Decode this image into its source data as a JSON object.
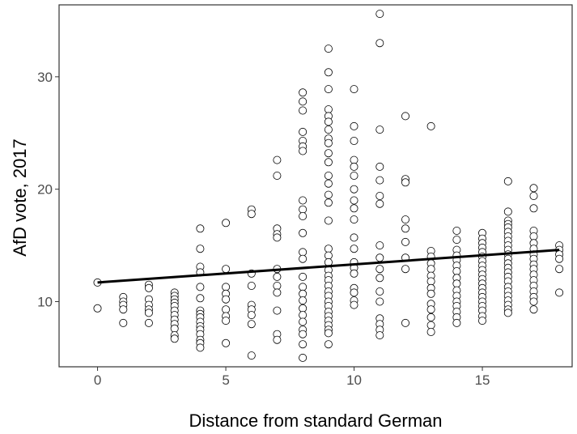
{
  "chart_data": {
    "type": "scatter",
    "title": "",
    "xlabel": "Distance from standard German",
    "ylabel": "AfD vote, 2017",
    "xlim": [
      -1.5,
      18.5
    ],
    "ylim": [
      4.2,
      36.4
    ],
    "x_ticks": [
      0,
      5,
      10,
      15
    ],
    "y_ticks": [
      10,
      20,
      30
    ],
    "x_tick_labels": [
      "0",
      "5",
      "10",
      "15"
    ],
    "y_tick_labels": [
      "10",
      "20",
      "30"
    ],
    "grid": false,
    "legend": "none",
    "trend_line": {
      "x": [
        0,
        18
      ],
      "y": [
        11.7,
        14.6
      ]
    },
    "points": [
      {
        "x": 0,
        "y": 11.7
      },
      {
        "x": 0,
        "y": 9.4
      },
      {
        "x": 1,
        "y": 10.4
      },
      {
        "x": 1,
        "y": 10.0
      },
      {
        "x": 1,
        "y": 9.7
      },
      {
        "x": 1,
        "y": 9.3
      },
      {
        "x": 1,
        "y": 8.1
      },
      {
        "x": 2,
        "y": 11.5
      },
      {
        "x": 2,
        "y": 11.2
      },
      {
        "x": 2,
        "y": 10.2
      },
      {
        "x": 2,
        "y": 9.7
      },
      {
        "x": 2,
        "y": 9.3
      },
      {
        "x": 2,
        "y": 9.0
      },
      {
        "x": 2,
        "y": 8.1
      },
      {
        "x": 3,
        "y": 10.8
      },
      {
        "x": 3,
        "y": 10.5
      },
      {
        "x": 3,
        "y": 10.2
      },
      {
        "x": 3,
        "y": 9.9
      },
      {
        "x": 3,
        "y": 9.6
      },
      {
        "x": 3,
        "y": 9.2
      },
      {
        "x": 3,
        "y": 8.8
      },
      {
        "x": 3,
        "y": 8.4
      },
      {
        "x": 3,
        "y": 8.0
      },
      {
        "x": 3,
        "y": 7.6
      },
      {
        "x": 3,
        "y": 7.0
      },
      {
        "x": 3,
        "y": 6.7
      },
      {
        "x": 4,
        "y": 16.5
      },
      {
        "x": 4,
        "y": 14.7
      },
      {
        "x": 4,
        "y": 13.1
      },
      {
        "x": 4,
        "y": 12.6
      },
      {
        "x": 4,
        "y": 11.3
      },
      {
        "x": 4,
        "y": 10.3
      },
      {
        "x": 4,
        "y": 9.2
      },
      {
        "x": 4,
        "y": 8.9
      },
      {
        "x": 4,
        "y": 8.6
      },
      {
        "x": 4,
        "y": 8.2
      },
      {
        "x": 4,
        "y": 7.8
      },
      {
        "x": 4,
        "y": 7.5
      },
      {
        "x": 4,
        "y": 7.1
      },
      {
        "x": 4,
        "y": 6.6
      },
      {
        "x": 4,
        "y": 6.3
      },
      {
        "x": 4,
        "y": 5.9
      },
      {
        "x": 5,
        "y": 17.0
      },
      {
        "x": 5,
        "y": 12.9
      },
      {
        "x": 5,
        "y": 11.3
      },
      {
        "x": 5,
        "y": 10.7
      },
      {
        "x": 5,
        "y": 10.2
      },
      {
        "x": 5,
        "y": 9.3
      },
      {
        "x": 5,
        "y": 8.7
      },
      {
        "x": 5,
        "y": 8.3
      },
      {
        "x": 5,
        "y": 6.3
      },
      {
        "x": 6,
        "y": 18.2
      },
      {
        "x": 6,
        "y": 17.8
      },
      {
        "x": 6,
        "y": 12.5
      },
      {
        "x": 6,
        "y": 11.4
      },
      {
        "x": 6,
        "y": 9.7
      },
      {
        "x": 6,
        "y": 9.3
      },
      {
        "x": 6,
        "y": 8.8
      },
      {
        "x": 6,
        "y": 8.0
      },
      {
        "x": 6,
        "y": 5.2
      },
      {
        "x": 7,
        "y": 22.6
      },
      {
        "x": 7,
        "y": 21.2
      },
      {
        "x": 7,
        "y": 16.5
      },
      {
        "x": 7,
        "y": 16.0
      },
      {
        "x": 7,
        "y": 15.7
      },
      {
        "x": 7,
        "y": 12.9
      },
      {
        "x": 7,
        "y": 12.2
      },
      {
        "x": 7,
        "y": 11.4
      },
      {
        "x": 7,
        "y": 10.8
      },
      {
        "x": 7,
        "y": 9.2
      },
      {
        "x": 7,
        "y": 7.1
      },
      {
        "x": 7,
        "y": 6.6
      },
      {
        "x": 8,
        "y": 28.6
      },
      {
        "x": 8,
        "y": 27.8
      },
      {
        "x": 8,
        "y": 27.0
      },
      {
        "x": 8,
        "y": 25.1
      },
      {
        "x": 8,
        "y": 24.3
      },
      {
        "x": 8,
        "y": 23.8
      },
      {
        "x": 8,
        "y": 23.4
      },
      {
        "x": 8,
        "y": 19.0
      },
      {
        "x": 8,
        "y": 18.2
      },
      {
        "x": 8,
        "y": 17.6
      },
      {
        "x": 8,
        "y": 16.1
      },
      {
        "x": 8,
        "y": 14.4
      },
      {
        "x": 8,
        "y": 13.8
      },
      {
        "x": 8,
        "y": 12.2
      },
      {
        "x": 8,
        "y": 11.3
      },
      {
        "x": 8,
        "y": 10.7
      },
      {
        "x": 8,
        "y": 10.1
      },
      {
        "x": 8,
        "y": 9.4
      },
      {
        "x": 8,
        "y": 8.8
      },
      {
        "x": 8,
        "y": 8.2
      },
      {
        "x": 8,
        "y": 7.5
      },
      {
        "x": 8,
        "y": 7.1
      },
      {
        "x": 8,
        "y": 6.2
      },
      {
        "x": 8,
        "y": 5.0
      },
      {
        "x": 9,
        "y": 32.5
      },
      {
        "x": 9,
        "y": 30.4
      },
      {
        "x": 9,
        "y": 28.9
      },
      {
        "x": 9,
        "y": 27.1
      },
      {
        "x": 9,
        "y": 26.5
      },
      {
        "x": 9,
        "y": 26.0
      },
      {
        "x": 9,
        "y": 25.3
      },
      {
        "x": 9,
        "y": 24.5
      },
      {
        "x": 9,
        "y": 24.1
      },
      {
        "x": 9,
        "y": 23.2
      },
      {
        "x": 9,
        "y": 22.4
      },
      {
        "x": 9,
        "y": 21.2
      },
      {
        "x": 9,
        "y": 20.5
      },
      {
        "x": 9,
        "y": 19.5
      },
      {
        "x": 9,
        "y": 18.8
      },
      {
        "x": 9,
        "y": 17.2
      },
      {
        "x": 9,
        "y": 14.7
      },
      {
        "x": 9,
        "y": 14.1
      },
      {
        "x": 9,
        "y": 13.5
      },
      {
        "x": 9,
        "y": 12.8
      },
      {
        "x": 9,
        "y": 12.3
      },
      {
        "x": 9,
        "y": 11.9
      },
      {
        "x": 9,
        "y": 11.4
      },
      {
        "x": 9,
        "y": 10.9
      },
      {
        "x": 9,
        "y": 10.5
      },
      {
        "x": 9,
        "y": 10.0
      },
      {
        "x": 9,
        "y": 9.6
      },
      {
        "x": 9,
        "y": 9.1
      },
      {
        "x": 9,
        "y": 8.7
      },
      {
        "x": 9,
        "y": 8.3
      },
      {
        "x": 9,
        "y": 7.9
      },
      {
        "x": 9,
        "y": 7.5
      },
      {
        "x": 9,
        "y": 7.2
      },
      {
        "x": 9,
        "y": 6.2
      },
      {
        "x": 10,
        "y": 28.9
      },
      {
        "x": 10,
        "y": 25.6
      },
      {
        "x": 10,
        "y": 24.3
      },
      {
        "x": 10,
        "y": 22.6
      },
      {
        "x": 10,
        "y": 22.0
      },
      {
        "x": 10,
        "y": 21.2
      },
      {
        "x": 10,
        "y": 20.0
      },
      {
        "x": 10,
        "y": 19.0
      },
      {
        "x": 10,
        "y": 18.3
      },
      {
        "x": 10,
        "y": 17.3
      },
      {
        "x": 10,
        "y": 15.7
      },
      {
        "x": 10,
        "y": 14.7
      },
      {
        "x": 10,
        "y": 13.5
      },
      {
        "x": 10,
        "y": 13.0
      },
      {
        "x": 10,
        "y": 12.5
      },
      {
        "x": 10,
        "y": 11.2
      },
      {
        "x": 10,
        "y": 10.8
      },
      {
        "x": 10,
        "y": 10.1
      },
      {
        "x": 10,
        "y": 9.7
      },
      {
        "x": 11,
        "y": 35.6
      },
      {
        "x": 11,
        "y": 33.0
      },
      {
        "x": 11,
        "y": 25.3
      },
      {
        "x": 11,
        "y": 22.0
      },
      {
        "x": 11,
        "y": 20.8
      },
      {
        "x": 11,
        "y": 19.4
      },
      {
        "x": 11,
        "y": 18.7
      },
      {
        "x": 11,
        "y": 15.0
      },
      {
        "x": 11,
        "y": 13.9
      },
      {
        "x": 11,
        "y": 12.9
      },
      {
        "x": 11,
        "y": 12.1
      },
      {
        "x": 11,
        "y": 10.9
      },
      {
        "x": 11,
        "y": 10.0
      },
      {
        "x": 11,
        "y": 8.5
      },
      {
        "x": 11,
        "y": 8.0
      },
      {
        "x": 11,
        "y": 7.5
      },
      {
        "x": 11,
        "y": 7.0
      },
      {
        "x": 12,
        "y": 26.5
      },
      {
        "x": 12,
        "y": 20.9
      },
      {
        "x": 12,
        "y": 20.6
      },
      {
        "x": 12,
        "y": 17.3
      },
      {
        "x": 12,
        "y": 16.5
      },
      {
        "x": 12,
        "y": 15.3
      },
      {
        "x": 12,
        "y": 13.9
      },
      {
        "x": 12,
        "y": 12.9
      },
      {
        "x": 12,
        "y": 8.1
      },
      {
        "x": 13,
        "y": 25.6
      },
      {
        "x": 13,
        "y": 14.5
      },
      {
        "x": 13,
        "y": 14.0
      },
      {
        "x": 13,
        "y": 13.4
      },
      {
        "x": 13,
        "y": 12.9
      },
      {
        "x": 13,
        "y": 12.3
      },
      {
        "x": 13,
        "y": 11.8
      },
      {
        "x": 13,
        "y": 11.2
      },
      {
        "x": 13,
        "y": 10.7
      },
      {
        "x": 13,
        "y": 9.8
      },
      {
        "x": 13,
        "y": 9.3
      },
      {
        "x": 13,
        "y": 8.6
      },
      {
        "x": 13,
        "y": 7.9
      },
      {
        "x": 13,
        "y": 7.3
      },
      {
        "x": 14,
        "y": 16.3
      },
      {
        "x": 14,
        "y": 15.5
      },
      {
        "x": 14,
        "y": 14.6
      },
      {
        "x": 14,
        "y": 14.1
      },
      {
        "x": 14,
        "y": 13.7
      },
      {
        "x": 14,
        "y": 13.2
      },
      {
        "x": 14,
        "y": 12.7
      },
      {
        "x": 14,
        "y": 12.1
      },
      {
        "x": 14,
        "y": 11.6
      },
      {
        "x": 14,
        "y": 11.0
      },
      {
        "x": 14,
        "y": 10.5
      },
      {
        "x": 14,
        "y": 10.0
      },
      {
        "x": 14,
        "y": 9.6
      },
      {
        "x": 14,
        "y": 9.1
      },
      {
        "x": 14,
        "y": 8.6
      },
      {
        "x": 14,
        "y": 8.1
      },
      {
        "x": 15,
        "y": 16.1
      },
      {
        "x": 15,
        "y": 15.6
      },
      {
        "x": 15,
        "y": 15.2
      },
      {
        "x": 15,
        "y": 14.8
      },
      {
        "x": 15,
        "y": 14.4
      },
      {
        "x": 15,
        "y": 14.0
      },
      {
        "x": 15,
        "y": 13.6
      },
      {
        "x": 15,
        "y": 13.2
      },
      {
        "x": 15,
        "y": 12.8
      },
      {
        "x": 15,
        "y": 12.4
      },
      {
        "x": 15,
        "y": 12.0
      },
      {
        "x": 15,
        "y": 11.6
      },
      {
        "x": 15,
        "y": 11.2
      },
      {
        "x": 15,
        "y": 10.8
      },
      {
        "x": 15,
        "y": 10.4
      },
      {
        "x": 15,
        "y": 10.0
      },
      {
        "x": 15,
        "y": 9.6
      },
      {
        "x": 15,
        "y": 9.2
      },
      {
        "x": 15,
        "y": 8.7
      },
      {
        "x": 15,
        "y": 8.3
      },
      {
        "x": 16,
        "y": 20.7
      },
      {
        "x": 16,
        "y": 18.0
      },
      {
        "x": 16,
        "y": 17.2
      },
      {
        "x": 16,
        "y": 16.9
      },
      {
        "x": 16,
        "y": 16.6
      },
      {
        "x": 16,
        "y": 16.2
      },
      {
        "x": 16,
        "y": 15.8
      },
      {
        "x": 16,
        "y": 15.4
      },
      {
        "x": 16,
        "y": 15.0
      },
      {
        "x": 16,
        "y": 14.6
      },
      {
        "x": 16,
        "y": 14.2
      },
      {
        "x": 16,
        "y": 13.8
      },
      {
        "x": 16,
        "y": 13.4
      },
      {
        "x": 16,
        "y": 13.0
      },
      {
        "x": 16,
        "y": 12.6
      },
      {
        "x": 16,
        "y": 12.2
      },
      {
        "x": 16,
        "y": 11.8
      },
      {
        "x": 16,
        "y": 11.3
      },
      {
        "x": 16,
        "y": 10.9
      },
      {
        "x": 16,
        "y": 10.5
      },
      {
        "x": 16,
        "y": 10.1
      },
      {
        "x": 16,
        "y": 9.7
      },
      {
        "x": 16,
        "y": 9.3
      },
      {
        "x": 16,
        "y": 9.0
      },
      {
        "x": 17,
        "y": 20.1
      },
      {
        "x": 17,
        "y": 19.4
      },
      {
        "x": 17,
        "y": 18.3
      },
      {
        "x": 17,
        "y": 16.3
      },
      {
        "x": 17,
        "y": 15.8
      },
      {
        "x": 17,
        "y": 15.2
      },
      {
        "x": 17,
        "y": 14.7
      },
      {
        "x": 17,
        "y": 14.2
      },
      {
        "x": 17,
        "y": 13.8
      },
      {
        "x": 17,
        "y": 13.3
      },
      {
        "x": 17,
        "y": 12.9
      },
      {
        "x": 17,
        "y": 12.4
      },
      {
        "x": 17,
        "y": 11.9
      },
      {
        "x": 17,
        "y": 11.4
      },
      {
        "x": 17,
        "y": 10.9
      },
      {
        "x": 17,
        "y": 10.4
      },
      {
        "x": 17,
        "y": 10.0
      },
      {
        "x": 17,
        "y": 9.3
      },
      {
        "x": 18,
        "y": 15.0
      },
      {
        "x": 18,
        "y": 14.6
      },
      {
        "x": 18,
        "y": 14.2
      },
      {
        "x": 18,
        "y": 13.8
      },
      {
        "x": 18,
        "y": 12.9
      },
      {
        "x": 18,
        "y": 10.8
      }
    ],
    "colors": {
      "axis": "#333333",
      "points_stroke": "#000000",
      "points_fill": "#ffffff",
      "trend_line": "#000000"
    }
  }
}
